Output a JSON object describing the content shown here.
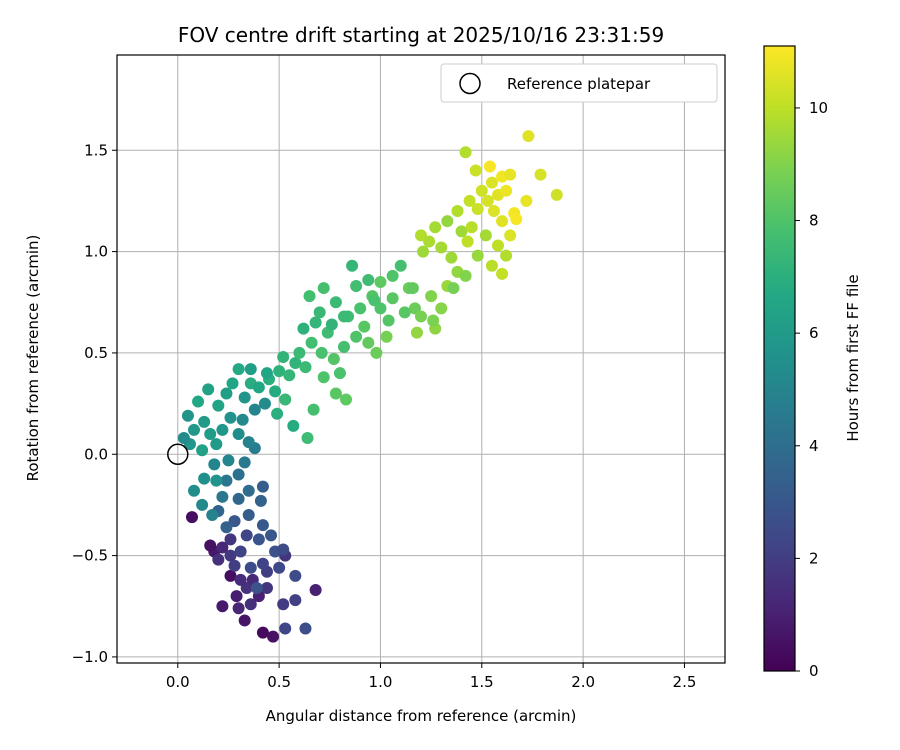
{
  "chart_data": {
    "type": "scatter",
    "title": "FOV centre drift starting at 2025/10/16 23:31:59",
    "xlabel": "Angular distance from reference (arcmin)",
    "ylabel": "Rotation from reference (arcmin)",
    "xlim": [
      -0.3,
      2.7
    ],
    "ylim": [
      -1.03,
      1.97
    ],
    "xticks": [
      0.0,
      0.5,
      1.0,
      1.5,
      2.0,
      2.5
    ],
    "xtick_labels": [
      "0.0",
      "0.5",
      "1.0",
      "1.5",
      "2.0",
      "2.5"
    ],
    "yticks": [
      -1.0,
      -0.5,
      0.0,
      0.5,
      1.0,
      1.5
    ],
    "ytick_labels": [
      "−1.0",
      "−0.5",
      "0.0",
      "0.5",
      "1.0",
      "1.5"
    ],
    "grid": true,
    "legend": {
      "position": "top-right",
      "label": "Reference platepar"
    },
    "reference_point": {
      "x": 0.0,
      "y": 0.0
    },
    "colorbar": {
      "label": "Hours from first FF file",
      "colormap": "viridis",
      "range": [
        0,
        11.1
      ],
      "ticks": [
        0,
        2,
        4,
        6,
        8,
        10
      ],
      "tick_labels": [
        "0",
        "2",
        "4",
        "6",
        "8",
        "10"
      ]
    },
    "points": [
      [
        0.42,
        -0.88,
        0.3
      ],
      [
        0.47,
        -0.9,
        0.5
      ],
      [
        0.33,
        -0.82,
        0.6
      ],
      [
        0.53,
        -0.86,
        2.3
      ],
      [
        0.63,
        -0.86,
        2.6
      ],
      [
        0.22,
        -0.75,
        0.8
      ],
      [
        0.3,
        -0.76,
        1.2
      ],
      [
        0.36,
        -0.74,
        1.5
      ],
      [
        0.4,
        -0.7,
        1.0
      ],
      [
        0.52,
        -0.74,
        1.9
      ],
      [
        0.58,
        -0.72,
        2.1
      ],
      [
        0.68,
        -0.67,
        1.0
      ],
      [
        0.29,
        -0.7,
        0.9
      ],
      [
        0.34,
        -0.66,
        1.6
      ],
      [
        0.26,
        -0.6,
        0.4
      ],
      [
        0.37,
        -0.62,
        1.3
      ],
      [
        0.44,
        -0.58,
        2.0
      ],
      [
        0.5,
        -0.56,
        2.4
      ],
      [
        0.58,
        -0.6,
        2.6
      ],
      [
        0.53,
        -0.5,
        1.7
      ],
      [
        0.48,
        -0.48,
        2.8
      ],
      [
        0.26,
        -0.5,
        1.8
      ],
      [
        0.18,
        -0.48,
        0.7
      ],
      [
        0.16,
        -0.45,
        0.5
      ],
      [
        0.22,
        -0.46,
        1.2
      ],
      [
        0.31,
        -0.48,
        2.2
      ],
      [
        0.4,
        -0.42,
        2.9
      ],
      [
        0.46,
        -0.4,
        3.0
      ],
      [
        0.52,
        -0.47,
        2.5
      ],
      [
        0.2,
        -0.52,
        1.5
      ],
      [
        0.26,
        -0.42,
        1.7
      ],
      [
        0.34,
        -0.4,
        2.3
      ],
      [
        0.42,
        -0.35,
        3.1
      ],
      [
        0.28,
        -0.33,
        3.0
      ],
      [
        0.35,
        -0.3,
        3.2
      ],
      [
        0.24,
        -0.36,
        3.4
      ],
      [
        0.42,
        -0.54,
        2.2
      ],
      [
        0.36,
        -0.56,
        2.5
      ],
      [
        0.31,
        -0.62,
        1.4
      ],
      [
        0.44,
        -0.66,
        1.7
      ],
      [
        0.39,
        -0.66,
        2.8
      ],
      [
        0.28,
        -0.55,
        2.0
      ],
      [
        0.07,
        -0.31,
        0.4
      ],
      [
        0.2,
        -0.28,
        3.6
      ],
      [
        0.3,
        -0.22,
        3.7
      ],
      [
        0.41,
        -0.23,
        3.5
      ],
      [
        0.42,
        -0.16,
        3.3
      ],
      [
        0.35,
        -0.18,
        3.9
      ],
      [
        0.24,
        -0.13,
        4.3
      ],
      [
        0.3,
        -0.1,
        4.1
      ],
      [
        0.33,
        -0.04,
        4.5
      ],
      [
        0.38,
        0.03,
        4.7
      ],
      [
        0.25,
        -0.03,
        5.1
      ],
      [
        0.18,
        -0.05,
        5.0
      ],
      [
        0.13,
        -0.12,
        5.5
      ],
      [
        0.08,
        -0.18,
        5.4
      ],
      [
        0.12,
        -0.25,
        5.2
      ],
      [
        0.17,
        -0.3,
        4.9
      ],
      [
        0.22,
        -0.21,
        4.4
      ],
      [
        0.19,
        -0.13,
        5.6
      ],
      [
        0.06,
        0.05,
        5.8
      ],
      [
        0.03,
        0.08,
        5.3
      ],
      [
        0.08,
        0.12,
        5.9
      ],
      [
        0.05,
        0.19,
        5.7
      ],
      [
        0.13,
        0.16,
        6.0
      ],
      [
        0.16,
        0.1,
        6.1
      ],
      [
        0.12,
        0.02,
        6.3
      ],
      [
        0.19,
        0.05,
        6.0
      ],
      [
        0.22,
        0.12,
        5.8
      ],
      [
        0.26,
        0.18,
        5.6
      ],
      [
        0.3,
        0.1,
        5.4
      ],
      [
        0.32,
        0.17,
        5.2
      ],
      [
        0.35,
        0.06,
        4.9
      ],
      [
        0.38,
        0.22,
        5.0
      ],
      [
        0.43,
        0.25,
        5.3
      ],
      [
        0.33,
        0.28,
        5.7
      ],
      [
        0.24,
        0.3,
        6.2
      ],
      [
        0.2,
        0.24,
        6.4
      ],
      [
        0.15,
        0.32,
        6.3
      ],
      [
        0.1,
        0.26,
        6.6
      ],
      [
        0.27,
        0.35,
        6.5
      ],
      [
        0.3,
        0.42,
        6.7
      ],
      [
        0.36,
        0.35,
        6.9
      ],
      [
        0.4,
        0.33,
        6.6
      ],
      [
        0.45,
        0.37,
        7.0
      ],
      [
        0.5,
        0.41,
        7.1
      ],
      [
        0.55,
        0.39,
        7.3
      ],
      [
        0.58,
        0.45,
        7.2
      ],
      [
        0.63,
        0.43,
        7.5
      ],
      [
        0.53,
        0.27,
        7.4
      ],
      [
        0.49,
        0.2,
        7.0
      ],
      [
        0.57,
        0.14,
        6.8
      ],
      [
        0.64,
        0.08,
        7.6
      ],
      [
        0.67,
        0.22,
        7.8
      ],
      [
        0.48,
        0.31,
        6.8
      ],
      [
        0.44,
        0.4,
        6.5
      ],
      [
        0.36,
        0.42,
        6.2
      ],
      [
        0.52,
        0.48,
        7.2
      ],
      [
        0.6,
        0.5,
        7.5
      ],
      [
        0.66,
        0.55,
        7.7
      ],
      [
        0.71,
        0.5,
        7.9
      ],
      [
        0.77,
        0.47,
        8.1
      ],
      [
        0.72,
        0.38,
        8.0
      ],
      [
        0.78,
        0.3,
        8.2
      ],
      [
        0.83,
        0.27,
        8.3
      ],
      [
        0.8,
        0.4,
        7.9
      ],
      [
        0.74,
        0.6,
        7.6
      ],
      [
        0.68,
        0.65,
        7.3
      ],
      [
        0.62,
        0.62,
        7.1
      ],
      [
        0.7,
        0.7,
        7.4
      ],
      [
        0.65,
        0.78,
        7.7
      ],
      [
        0.72,
        0.82,
        7.8
      ],
      [
        0.78,
        0.75,
        7.5
      ],
      [
        0.84,
        0.68,
        7.6
      ],
      [
        0.88,
        0.58,
        8.0
      ],
      [
        0.94,
        0.55,
        8.4
      ],
      [
        0.98,
        0.5,
        8.6
      ],
      [
        1.03,
        0.58,
        8.8
      ],
      [
        0.9,
        0.72,
        7.9
      ],
      [
        0.96,
        0.78,
        8.1
      ],
      [
        1.0,
        0.85,
        8.3
      ],
      [
        1.06,
        0.88,
        8.0
      ],
      [
        1.1,
        0.93,
        7.8
      ],
      [
        1.14,
        0.82,
        8.5
      ],
      [
        1.17,
        0.72,
        8.6
      ],
      [
        1.2,
        0.68,
        8.8
      ],
      [
        1.12,
        0.7,
        8.2
      ],
      [
        1.0,
        0.72,
        8.0
      ],
      [
        0.82,
        0.53,
        7.8
      ],
      [
        0.92,
        0.63,
        8.2
      ],
      [
        1.25,
        0.78,
        9.0
      ],
      [
        1.3,
        0.72,
        9.1
      ],
      [
        1.27,
        0.62,
        9.2
      ],
      [
        1.18,
        0.6,
        9.3
      ],
      [
        1.33,
        0.83,
        9.4
      ],
      [
        1.38,
        0.9,
        9.3
      ],
      [
        1.35,
        0.97,
        9.5
      ],
      [
        1.3,
        1.02,
        9.6
      ],
      [
        1.24,
        1.05,
        9.7
      ],
      [
        1.21,
        1.0,
        9.5
      ],
      [
        1.2,
        1.08,
        9.8
      ],
      [
        1.27,
        1.12,
        9.6
      ],
      [
        1.33,
        1.15,
        9.3
      ],
      [
        1.4,
        1.1,
        9.5
      ],
      [
        1.45,
        1.12,
        9.9
      ],
      [
        1.43,
        1.05,
        10.0
      ],
      [
        1.38,
        1.2,
        9.8
      ],
      [
        1.44,
        1.25,
        10.1
      ],
      [
        1.48,
        1.21,
        10.2
      ],
      [
        1.5,
        1.3,
        10.3
      ],
      [
        1.53,
        1.25,
        10.4
      ],
      [
        1.56,
        1.2,
        10.5
      ],
      [
        1.58,
        1.28,
        10.6
      ],
      [
        1.62,
        1.3,
        10.8
      ],
      [
        1.6,
        1.37,
        10.9
      ],
      [
        1.54,
        1.42,
        11.0
      ],
      [
        1.64,
        1.38,
        10.7
      ],
      [
        1.55,
        1.34,
        10.5
      ],
      [
        1.47,
        1.4,
        10.2
      ],
      [
        1.42,
        1.49,
        9.8
      ],
      [
        1.73,
        1.57,
        10.6
      ],
      [
        1.79,
        1.38,
        10.4
      ],
      [
        1.87,
        1.28,
        10.3
      ],
      [
        1.72,
        1.25,
        10.7
      ],
      [
        1.66,
        1.19,
        10.9
      ],
      [
        1.67,
        1.16,
        11.0
      ],
      [
        1.6,
        1.15,
        10.6
      ],
      [
        1.64,
        1.08,
        10.5
      ],
      [
        1.58,
        1.03,
        10.0
      ],
      [
        1.52,
        1.08,
        9.6
      ],
      [
        1.48,
        0.98,
        9.4
      ],
      [
        1.55,
        0.93,
        9.9
      ],
      [
        1.6,
        0.89,
        10.1
      ],
      [
        1.62,
        0.98,
        9.8
      ],
      [
        1.42,
        0.88,
        9.0
      ],
      [
        1.36,
        0.82,
        8.8
      ],
      [
        1.26,
        0.66,
        8.9
      ],
      [
        1.16,
        0.82,
        8.4
      ],
      [
        1.06,
        0.77,
        8.2
      ],
      [
        1.04,
        0.66,
        8.1
      ],
      [
        0.97,
        0.76,
        7.9
      ],
      [
        0.88,
        0.83,
        7.7
      ],
      [
        0.94,
        0.86,
        7.6
      ],
      [
        0.86,
        0.93,
        7.3
      ],
      [
        0.82,
        0.68,
        7.5
      ],
      [
        0.76,
        0.64,
        7.2
      ]
    ]
  }
}
